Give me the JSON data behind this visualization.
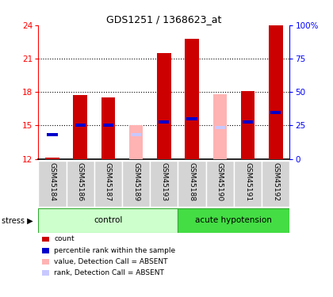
{
  "title": "GDS1251 / 1368623_at",
  "samples": [
    "GSM45184",
    "GSM45186",
    "GSM45187",
    "GSM45189",
    "GSM45193",
    "GSM45188",
    "GSM45190",
    "GSM45191",
    "GSM45192"
  ],
  "red_values": [
    12.1,
    17.7,
    17.5,
    12.1,
    21.5,
    22.8,
    12.1,
    18.1,
    24.0
  ],
  "blue_values": [
    14.2,
    15.0,
    15.0,
    null,
    15.3,
    15.6,
    14.9,
    15.3,
    16.2
  ],
  "pink_values": [
    null,
    null,
    null,
    15.0,
    null,
    null,
    17.8,
    null,
    null
  ],
  "lavender_values": [
    null,
    null,
    null,
    14.2,
    null,
    null,
    14.8,
    null,
    null
  ],
  "absent_mask": [
    false,
    false,
    false,
    true,
    false,
    false,
    true,
    false,
    false
  ],
  "ylim": [
    12,
    24
  ],
  "yticks_left": [
    12,
    15,
    18,
    21,
    24
  ],
  "yticks_right": [
    0,
    25,
    50,
    75,
    100
  ],
  "y_right_labels": [
    "0",
    "25",
    "50",
    "75",
    "100%"
  ],
  "dotted_lines": [
    15,
    18,
    21
  ],
  "bar_width": 0.5,
  "red_color": "#cc0000",
  "blue_color": "#0000cc",
  "pink_color": "#ffb3b3",
  "lavender_color": "#c8c8ff",
  "control_color": "#ccffcc",
  "acute_color": "#44dd44",
  "group_border_color": "#33aa33",
  "legend_items": [
    {
      "color": "#cc0000",
      "label": "count"
    },
    {
      "color": "#0000cc",
      "label": "percentile rank within the sample"
    },
    {
      "color": "#ffb3b3",
      "label": "value, Detection Call = ABSENT"
    },
    {
      "color": "#c8c8ff",
      "label": "rank, Detection Call = ABSENT"
    }
  ],
  "n_control": 5,
  "n_acute": 4
}
